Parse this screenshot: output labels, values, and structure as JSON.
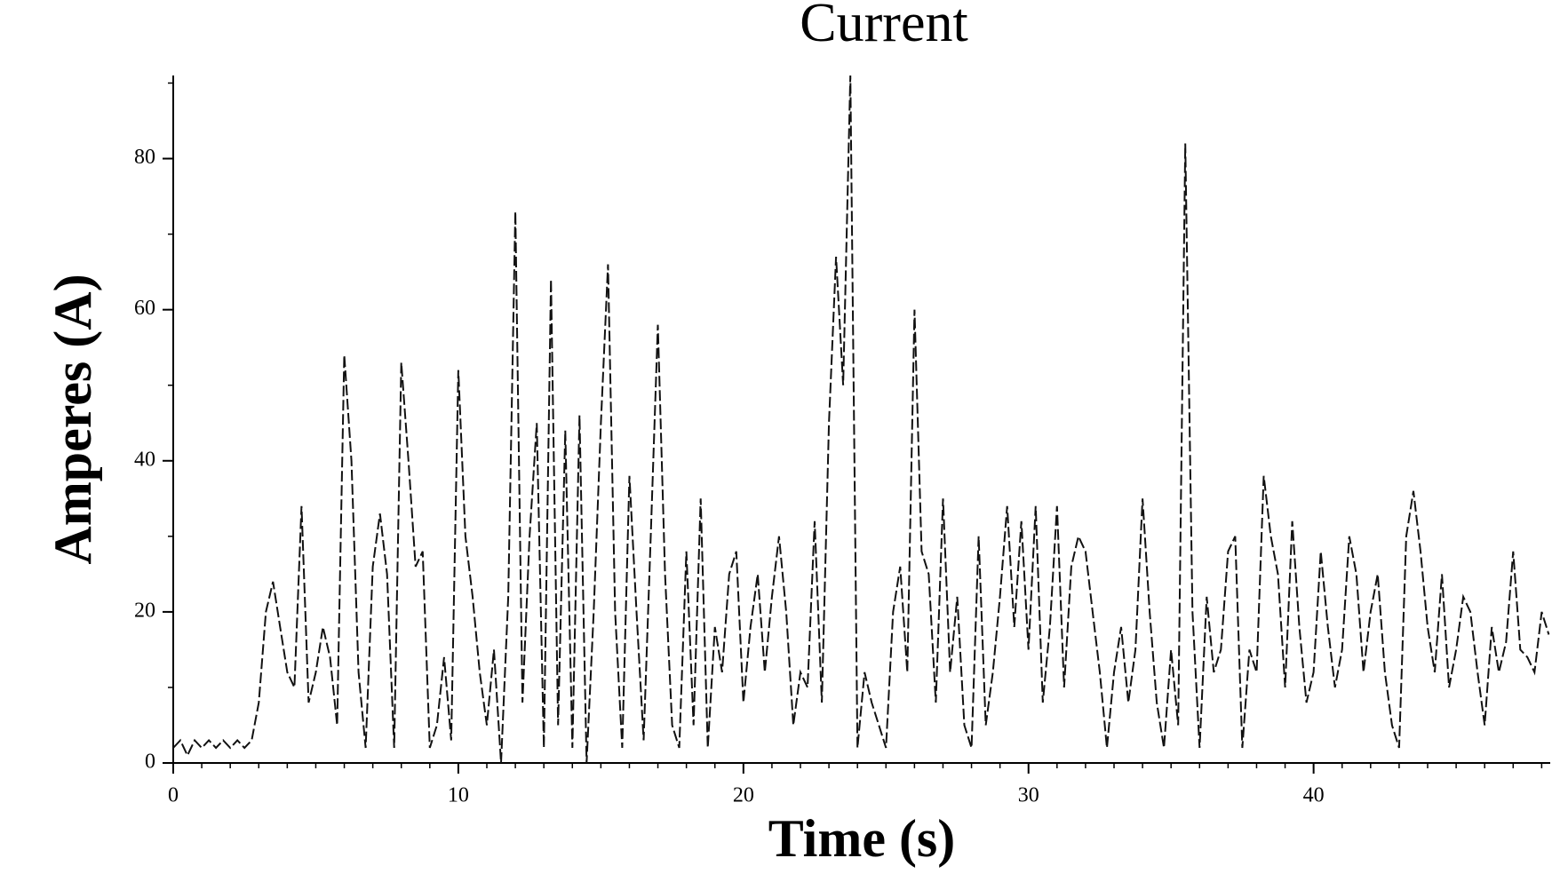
{
  "chart_data": {
    "type": "line",
    "title": "Current",
    "xlabel": "Time (s)",
    "ylabel": "Amperes (A)",
    "x": [
      0,
      0.25,
      0.5,
      0.75,
      1,
      1.25,
      1.5,
      1.75,
      2,
      2.25,
      2.5,
      2.75,
      3,
      3.25,
      3.5,
      3.75,
      4,
      4.25,
      4.5,
      4.75,
      5,
      5.25,
      5.5,
      5.75,
      6,
      6.25,
      6.5,
      6.75,
      7,
      7.25,
      7.5,
      7.75,
      8,
      8.25,
      8.5,
      8.75,
      9,
      9.25,
      9.5,
      9.75,
      10,
      10.25,
      10.5,
      10.75,
      11,
      11.25,
      11.5,
      11.75,
      12,
      12.25,
      12.5,
      12.75,
      13,
      13.25,
      13.5,
      13.75,
      14,
      14.25,
      14.5,
      14.75,
      15,
      15.25,
      15.5,
      15.75,
      16,
      16.25,
      16.5,
      16.75,
      17,
      17.25,
      17.5,
      17.75,
      18,
      18.25,
      18.5,
      18.75,
      19,
      19.25,
      19.5,
      19.75,
      20,
      20.25,
      20.5,
      20.75,
      21,
      21.25,
      21.5,
      21.75,
      22,
      22.25,
      22.5,
      22.75,
      23,
      23.25,
      23.5,
      23.75,
      24,
      24.25,
      24.5,
      24.75,
      25,
      25.25,
      25.5,
      25.75,
      26,
      26.25,
      26.5,
      26.75,
      27,
      27.25,
      27.5,
      27.75,
      28,
      28.25,
      28.5,
      28.75,
      29,
      29.25,
      29.5,
      29.75,
      30,
      30.25,
      30.5,
      30.75,
      31,
      31.25,
      31.5,
      31.75,
      32,
      32.25,
      32.5,
      32.75,
      33,
      33.25,
      33.5,
      33.75,
      34,
      34.25,
      34.5,
      34.75,
      35,
      35.25,
      35.5,
      35.75,
      36,
      36.25,
      36.5,
      36.75,
      37,
      37.25,
      37.5,
      37.75,
      38,
      38.25,
      38.5,
      38.75,
      39,
      39.25,
      39.5,
      39.75,
      40,
      40.25,
      40.5,
      40.75,
      41,
      41.25,
      41.5,
      41.75,
      42,
      42.25,
      42.5,
      42.75,
      43,
      43.25,
      43.5,
      43.75,
      44,
      44.25,
      44.5,
      44.75,
      45,
      45.25,
      45.5,
      45.75,
      46,
      46.25,
      46.5,
      46.75,
      47,
      47.25,
      47.5,
      47.75,
      48,
      48.25
    ],
    "series": [
      {
        "name": "Current",
        "color": "#111111",
        "values": [
          2,
          3,
          1,
          3,
          2,
          3,
          2,
          3,
          2,
          3,
          2,
          3,
          8,
          20,
          24,
          18,
          12,
          10,
          34,
          8,
          12,
          18,
          14,
          5,
          54,
          40,
          12,
          2,
          26,
          33,
          25,
          2,
          53,
          40,
          26,
          28,
          2,
          5,
          14,
          3,
          52,
          30,
          22,
          12,
          5,
          15,
          0,
          22,
          73,
          8,
          30,
          45,
          2,
          64,
          5,
          44,
          2,
          46,
          0,
          20,
          45,
          66,
          20,
          2,
          38,
          20,
          3,
          30,
          58,
          25,
          5,
          2,
          28,
          5,
          35,
          2,
          18,
          12,
          25,
          28,
          8,
          18,
          25,
          12,
          22,
          30,
          20,
          5,
          12,
          10,
          32,
          8,
          45,
          67,
          50,
          91,
          2,
          12,
          8,
          5,
          2,
          20,
          26,
          12,
          60,
          28,
          25,
          8,
          35,
          12,
          22,
          5,
          2,
          30,
          5,
          12,
          22,
          34,
          18,
          32,
          15,
          34,
          8,
          18,
          34,
          10,
          26,
          30,
          28,
          20,
          12,
          2,
          12,
          18,
          8,
          15,
          35,
          20,
          8,
          2,
          15,
          5,
          82,
          20,
          2,
          22,
          12,
          15,
          28,
          30,
          2,
          15,
          12,
          38,
          30,
          25,
          10,
          32,
          18,
          8,
          12,
          28,
          18,
          10,
          15,
          30,
          25,
          12,
          20,
          25,
          12,
          5,
          2,
          30,
          36,
          28,
          18,
          12,
          25,
          10,
          15,
          22,
          20,
          12,
          5,
          18,
          12,
          16,
          28,
          15,
          14,
          12,
          20,
          17
        ]
      }
    ],
    "xlim": [
      0,
      48.3
    ],
    "ylim": [
      0,
      91
    ],
    "xticks": [
      0,
      10,
      20,
      30,
      40
    ],
    "yticks": [
      0,
      20,
      40,
      60,
      80
    ],
    "xminorticks": [
      0,
      1,
      2,
      3,
      4,
      5,
      6,
      7,
      8,
      9,
      10,
      11,
      12,
      13,
      14,
      15,
      16,
      17,
      18,
      19,
      20,
      21,
      22,
      23,
      24,
      25,
      26,
      27,
      28,
      29,
      30,
      31,
      32,
      33,
      34,
      35,
      36,
      37,
      38,
      39,
      40,
      41,
      42,
      43,
      44,
      45,
      46,
      47,
      48
    ],
    "yminorticks": [
      0,
      10,
      20,
      30,
      40,
      50,
      60,
      70,
      80,
      90
    ],
    "grid": false,
    "dashed": true
  }
}
